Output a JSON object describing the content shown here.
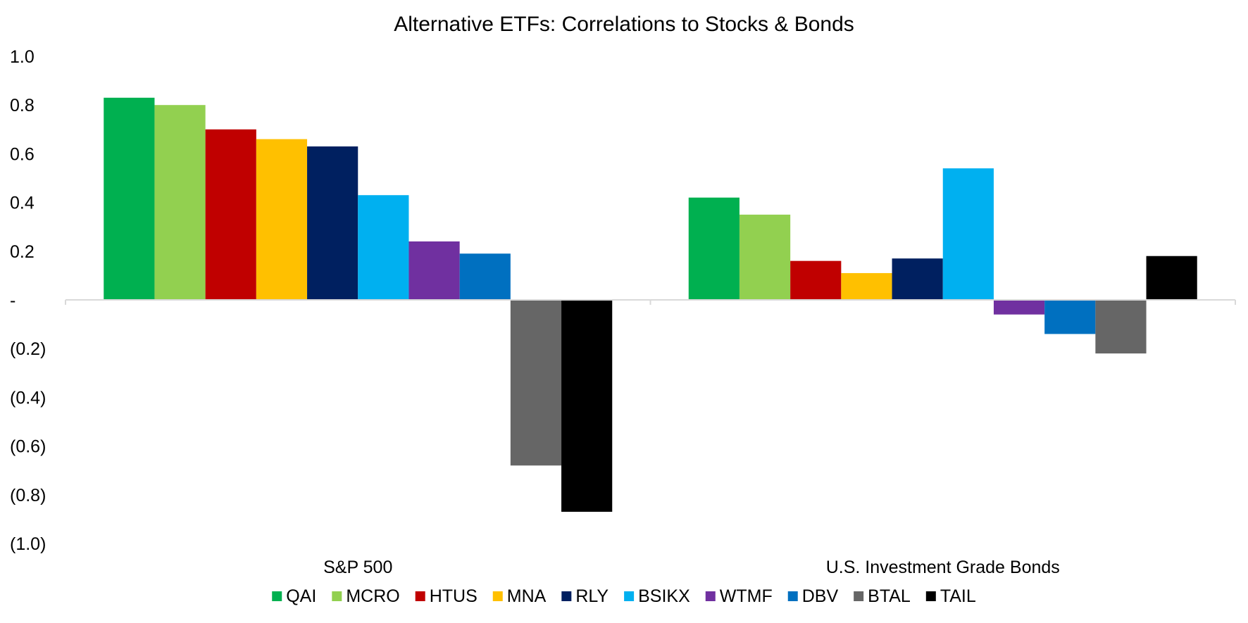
{
  "chart_data": {
    "type": "bar",
    "title": "Alternative ETFs: Correlations to Stocks & Bonds",
    "xlabel": "",
    "ylabel": "",
    "ylim": [
      -1.0,
      1.0
    ],
    "y_ticks": [
      {
        "value": 1.0,
        "label": "1.0"
      },
      {
        "value": 0.8,
        "label": "0.8"
      },
      {
        "value": 0.6,
        "label": "0.6"
      },
      {
        "value": 0.4,
        "label": "0.4"
      },
      {
        "value": 0.2,
        "label": "0.2"
      },
      {
        "value": 0.0,
        "label": "-"
      },
      {
        "value": -0.2,
        "label": "(0.2)"
      },
      {
        "value": -0.4,
        "label": "(0.4)"
      },
      {
        "value": -0.6,
        "label": "(0.6)"
      },
      {
        "value": -0.8,
        "label": "(0.8)"
      },
      {
        "value": -1.0,
        "label": "(1.0)"
      }
    ],
    "grid": false,
    "legend_position": "bottom",
    "categories": [
      "S&P 500",
      "U.S. Investment Grade Bonds"
    ],
    "series": [
      {
        "name": "QAI",
        "color": "#00b050",
        "values": [
          0.83,
          0.42
        ]
      },
      {
        "name": "MCRO",
        "color": "#92d050",
        "values": [
          0.8,
          0.35
        ]
      },
      {
        "name": "HTUS",
        "color": "#c00000",
        "values": [
          0.7,
          0.16
        ]
      },
      {
        "name": "MNA",
        "color": "#ffc000",
        "values": [
          0.66,
          0.11
        ]
      },
      {
        "name": "RLY",
        "color": "#002060",
        "values": [
          0.63,
          0.17
        ]
      },
      {
        "name": "BSIKX",
        "color": "#00b0f0",
        "values": [
          0.43,
          0.54
        ]
      },
      {
        "name": "WTMF",
        "color": "#7030a0",
        "values": [
          0.24,
          -0.06
        ]
      },
      {
        "name": "DBV",
        "color": "#0070c0",
        "values": [
          0.19,
          -0.14
        ]
      },
      {
        "name": "BTAL",
        "color": "#666666",
        "values": [
          -0.68,
          -0.22
        ]
      },
      {
        "name": "TAIL",
        "color": "#000000",
        "values": [
          -0.87,
          0.18
        ]
      }
    ]
  }
}
